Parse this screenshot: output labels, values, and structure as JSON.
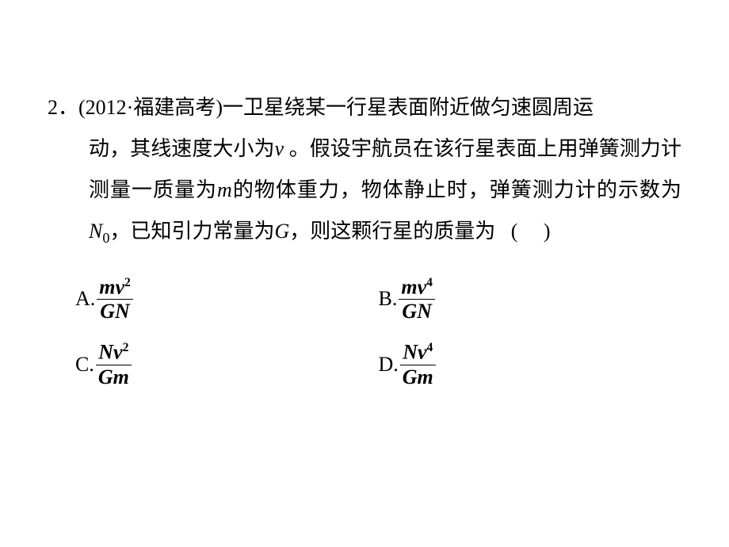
{
  "question": {
    "number": "2．",
    "source_open": "(2012·",
    "source_text": "福建高考",
    "source_close": ")",
    "line1_rest": "一卫星绕某一行星表面附近做匀速圆周运",
    "line2_a": "动，其线速度大小为",
    "var_v": "v",
    "line2_b": " 。假设宇航员在该行星表面上用弹簧测",
    "line3_a": "力计测量一质量为",
    "var_m": "m",
    "line3_b": "的物体重力，物体静止时，弹簧测力计的",
    "line4_a": "示数为",
    "var_N": "N",
    "sub_0": "0",
    "line4_b": "，已知引力常量为",
    "var_G": "G",
    "line4_c": "，则这颗行星的质量为",
    "paren_open": "(",
    "paren_close": ")"
  },
  "options": {
    "A": {
      "label": "A.",
      "num_a": "mv",
      "num_exp": "2",
      "den_a": "GN"
    },
    "B": {
      "label": "B.",
      "num_a": "mv",
      "num_exp": "4",
      "den_a": "GN"
    },
    "C": {
      "label": "C.",
      "num_a": "Nv",
      "num_exp": "2",
      "den_a": "Gm"
    },
    "D": {
      "label": "D.",
      "num_a": "Nv",
      "num_exp": "4",
      "den_a": "Gm"
    }
  },
  "colors": {
    "background": "#ffffff",
    "text": "#000000"
  }
}
